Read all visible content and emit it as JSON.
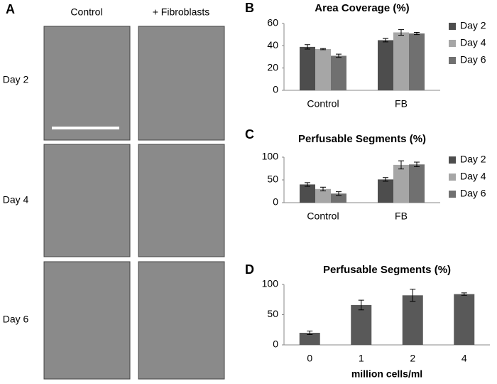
{
  "panel_a": {
    "label": "A",
    "columns": [
      "Control",
      "+ Fibroblasts"
    ],
    "rows": [
      "Day 2",
      "Day 4",
      "Day 6"
    ]
  },
  "chart_data": [
    {
      "type": "bar",
      "panel": "B",
      "title": "Area Coverage (%)",
      "categories": [
        "Control",
        "FB"
      ],
      "series": [
        {
          "name": "Day 2",
          "color": "#4d4d4d",
          "values": [
            39,
            45
          ],
          "errors": [
            2,
            1.5
          ]
        },
        {
          "name": "Day 4",
          "color": "#a6a6a6",
          "values": [
            37,
            52
          ],
          "errors": [
            0.5,
            2.5
          ]
        },
        {
          "name": "Day 6",
          "color": "#707070",
          "values": [
            31,
            51
          ],
          "errors": [
            1.5,
            1
          ]
        }
      ],
      "ylim": [
        0,
        60
      ],
      "yticks": [
        0,
        20,
        40,
        60
      ],
      "legend": "right"
    },
    {
      "type": "bar",
      "panel": "C",
      "title": "Perfusable Segments (%)",
      "categories": [
        "Control",
        "FB"
      ],
      "series": [
        {
          "name": "Day 2",
          "color": "#4d4d4d",
          "values": [
            40,
            51
          ],
          "errors": [
            4,
            4
          ]
        },
        {
          "name": "Day 4",
          "color": "#a6a6a6",
          "values": [
            30,
            83
          ],
          "errors": [
            4,
            9
          ]
        },
        {
          "name": "Day 6",
          "color": "#707070",
          "values": [
            20,
            84
          ],
          "errors": [
            4,
            5
          ]
        }
      ],
      "ylim": [
        0,
        100
      ],
      "yticks": [
        0,
        50,
        100
      ],
      "legend": "right"
    },
    {
      "type": "bar",
      "panel": "D",
      "title": "Perfusable Segments (%)",
      "categories": [
        "0",
        "1",
        "2",
        "4"
      ],
      "values": [
        20,
        66,
        82,
        84
      ],
      "errors": [
        3,
        8,
        10,
        2
      ],
      "color": "#595959",
      "x_label": "million cells/ml",
      "ylim": [
        0,
        100
      ],
      "yticks": [
        0,
        50,
        100
      ]
    }
  ]
}
